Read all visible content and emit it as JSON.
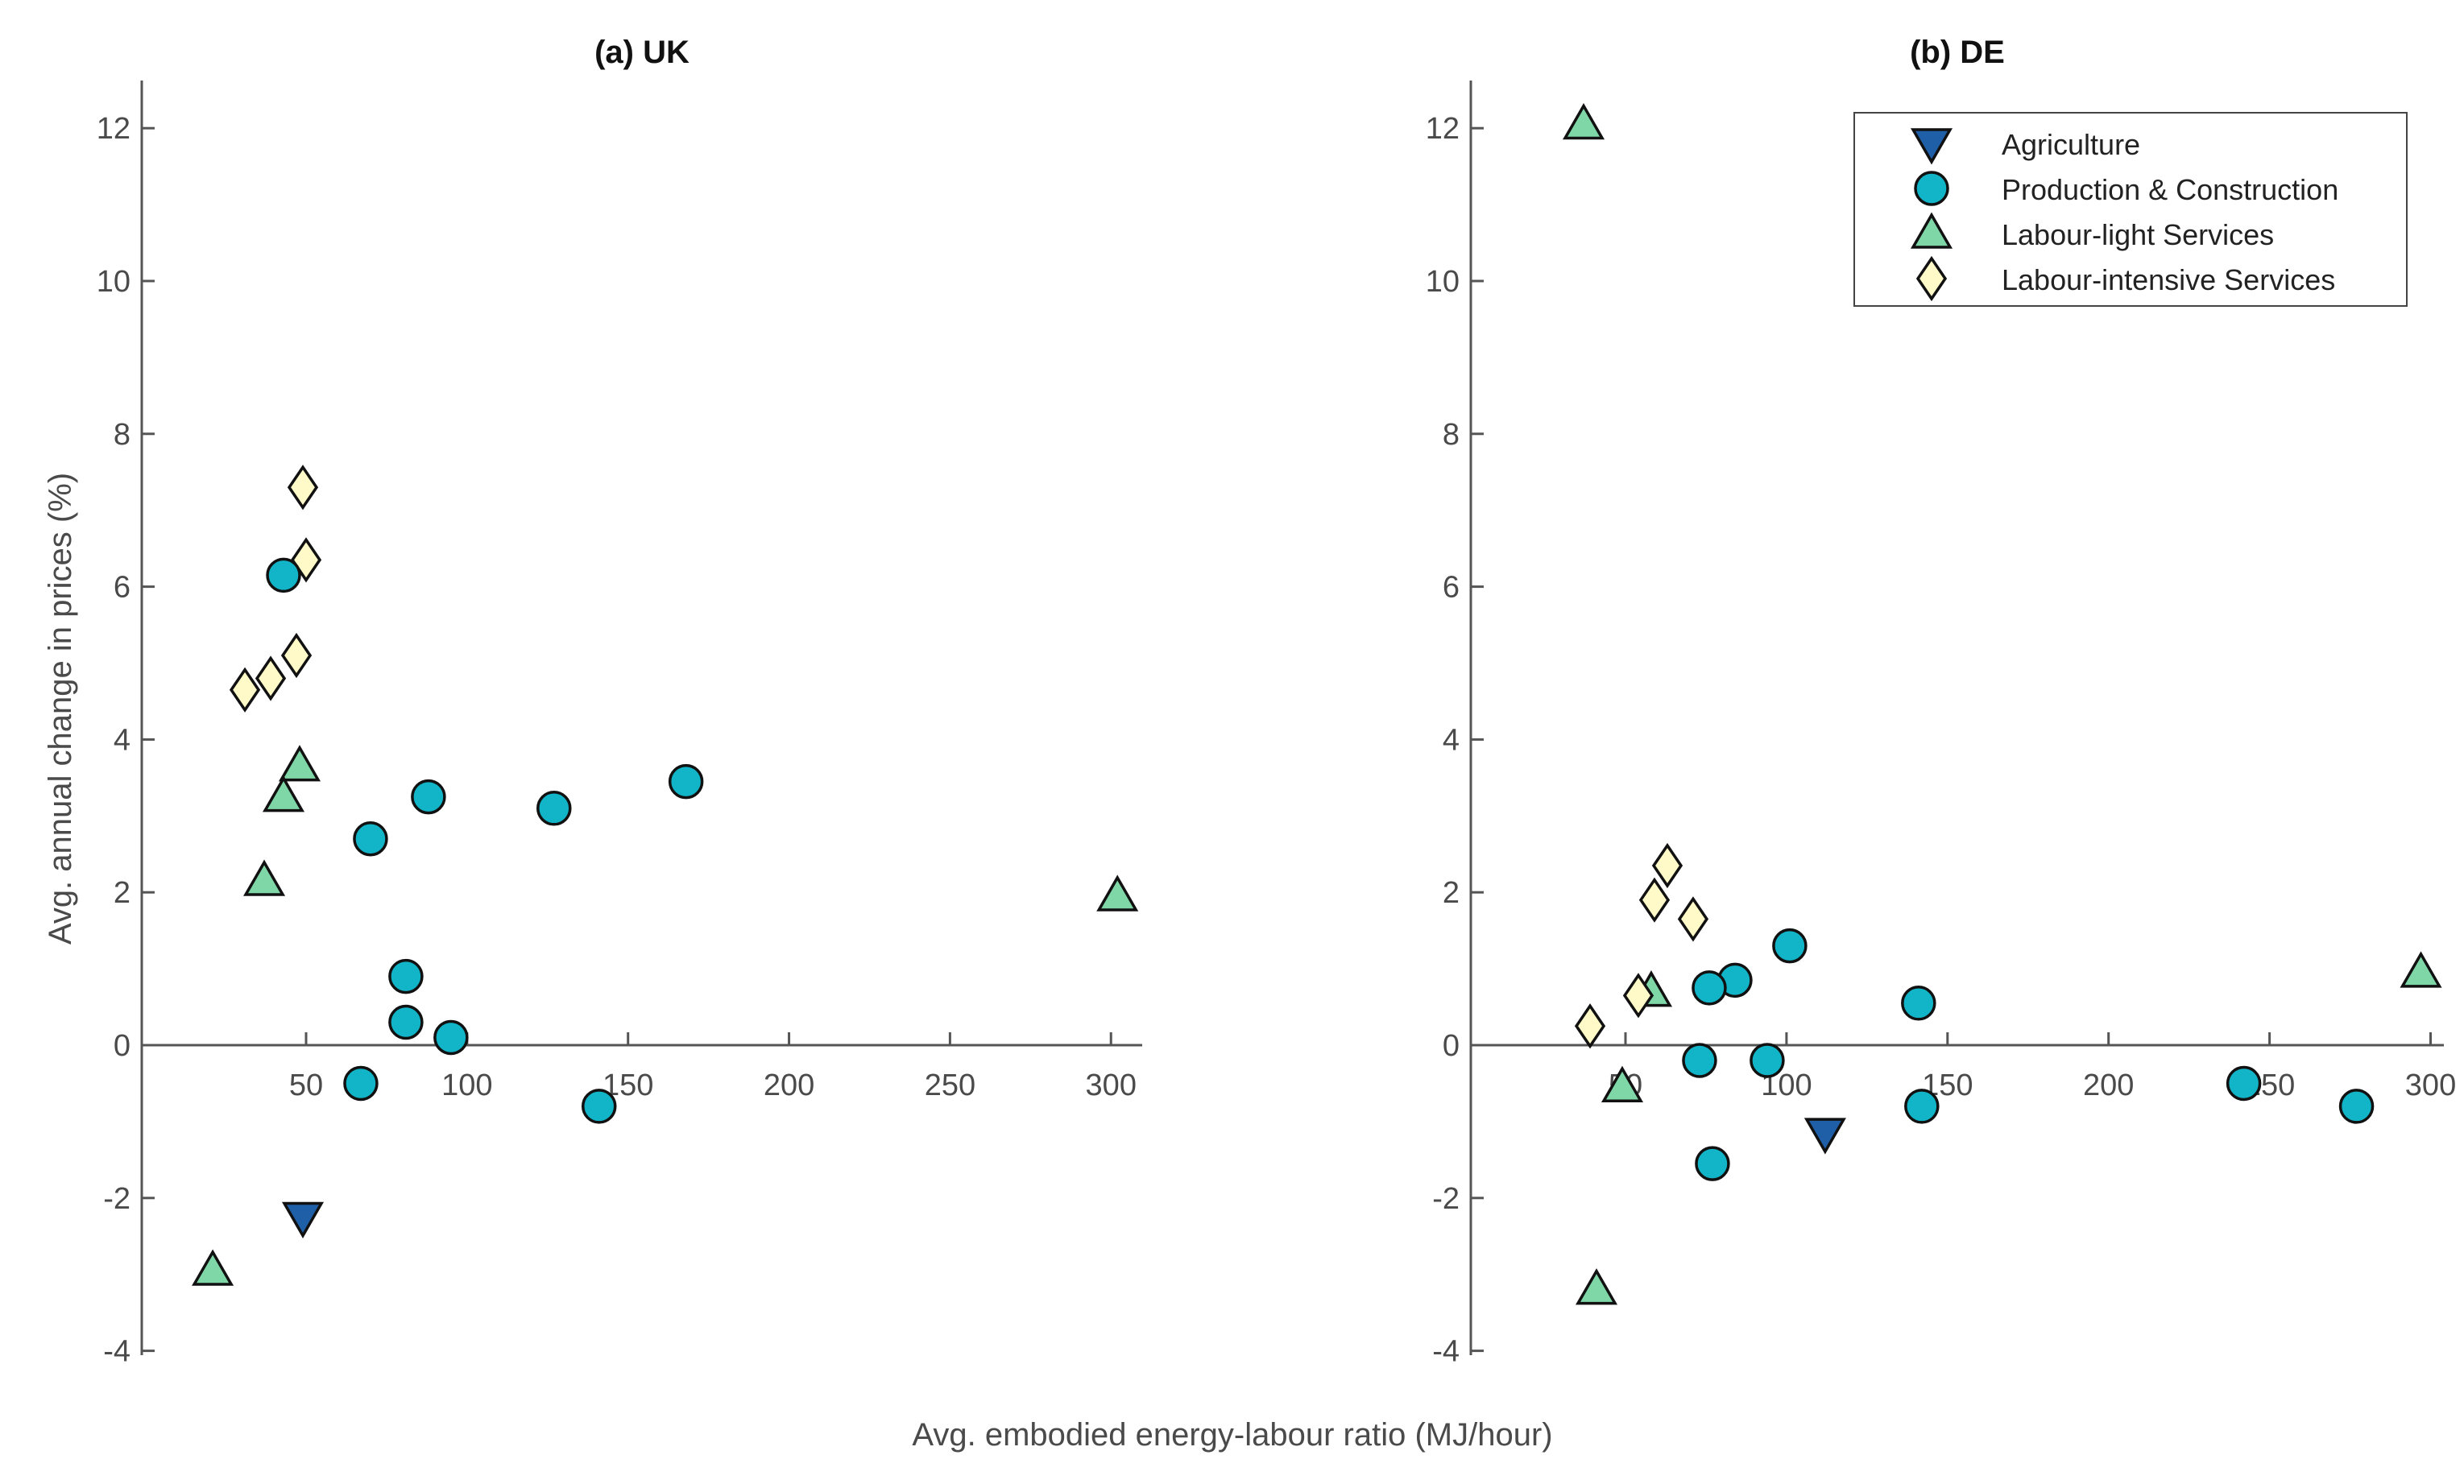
{
  "figure": {
    "xlabel": "Avg. embodied energy-labour ratio (MJ/hour)",
    "ylabel": "Avg. annual change in prices (%)"
  },
  "legend": {
    "placement": "top-right of panel (b)",
    "entries": [
      {
        "key": "agri",
        "label": "Agriculture"
      },
      {
        "key": "prod",
        "label": "Production & Construction"
      },
      {
        "key": "llight",
        "label": "Labour-light Services"
      },
      {
        "key": "lint",
        "label": "Labour-intensive Services"
      }
    ]
  },
  "styles": {
    "agri": {
      "marker": "triangle-down",
      "color": "#1f5fa8"
    },
    "prod": {
      "marker": "circle",
      "color": "#12b5c8"
    },
    "llight": {
      "marker": "triangle-up",
      "color": "#7fd7a8"
    },
    "lint": {
      "marker": "diamond",
      "color": "#fffac8"
    },
    "edge": "#111111",
    "axis": "#555555"
  },
  "chart_data": [
    {
      "type": "scatter",
      "title": "(a) UK",
      "xlim": [
        0,
        310
      ],
      "ylim": [
        -4,
        12.5
      ],
      "xticks": [
        50,
        100,
        150,
        200,
        250,
        300
      ],
      "xtick_labels": [
        "50",
        "100",
        "150",
        "200",
        "250",
        "300"
      ],
      "yticks": [
        -4,
        -2,
        0,
        2,
        4,
        6,
        8,
        10,
        12
      ],
      "ytick_labels": [
        "-4",
        "-2",
        "0",
        "2",
        "4",
        "6",
        "8",
        "10",
        "12"
      ],
      "series": [
        {
          "key": "lint",
          "name": "Labour-intensive Services",
          "points": [
            [
              49,
              7.3
            ],
            [
              50,
              6.35
            ],
            [
              47,
              5.1
            ],
            [
              39,
              4.8
            ],
            [
              31,
              4.65
            ]
          ]
        },
        {
          "key": "prod",
          "name": "Production & Construction",
          "points": [
            [
              43,
              6.15
            ],
            [
              88,
              3.25
            ],
            [
              168,
              3.45
            ],
            [
              127,
              3.1
            ],
            [
              70,
              2.7
            ],
            [
              81,
              0.9
            ],
            [
              81,
              0.3
            ],
            [
              95,
              0.1
            ],
            [
              67,
              -0.5
            ],
            [
              141,
              -0.8
            ]
          ]
        },
        {
          "key": "llight",
          "name": "Labour-light Services",
          "points": [
            [
              48,
              3.65
            ],
            [
              43,
              3.25
            ],
            [
              37,
              2.15
            ],
            [
              302,
              1.95
            ],
            [
              21,
              -2.95
            ]
          ]
        },
        {
          "key": "agri",
          "name": "Agriculture",
          "points": [
            [
              49,
              -2.25
            ]
          ]
        }
      ]
    },
    {
      "type": "scatter",
      "title": "(b) DE",
      "xlim": [
        0,
        310
      ],
      "ylim": [
        -4,
        12.5
      ],
      "xticks": [
        50,
        100,
        150,
        200,
        250,
        300
      ],
      "xtick_labels": [
        "50",
        "100",
        "150",
        "200",
        "250",
        "300"
      ],
      "yticks": [
        -4,
        -2,
        0,
        2,
        4,
        6,
        8,
        10,
        12
      ],
      "ytick_labels": [
        "-4",
        "-2",
        "0",
        "2",
        "4",
        "6",
        "8",
        "10",
        "12"
      ],
      "series": [
        {
          "key": "llight",
          "name": "Labour-light Services",
          "points": [
            [
              37,
              12.05
            ],
            [
              297,
              0.95
            ],
            [
              58,
              0.7
            ],
            [
              49,
              -0.55
            ],
            [
              41,
              -3.2
            ]
          ]
        },
        {
          "key": "lint",
          "name": "Labour-intensive Services",
          "points": [
            [
              63,
              2.35
            ],
            [
              59,
              1.9
            ],
            [
              71,
              1.65
            ],
            [
              54,
              0.65
            ],
            [
              39,
              0.25
            ]
          ]
        },
        {
          "key": "prod",
          "name": "Production & Construction",
          "points": [
            [
              101,
              1.3
            ],
            [
              84,
              0.85
            ],
            [
              76,
              0.75
            ],
            [
              141,
              0.55
            ],
            [
              73,
              -0.2
            ],
            [
              94,
              -0.2
            ],
            [
              142,
              -0.8
            ],
            [
              242,
              -0.5
            ],
            [
              277,
              -0.8
            ],
            [
              77,
              -1.55
            ]
          ]
        },
        {
          "key": "agri",
          "name": "Agriculture",
          "points": [
            [
              112,
              -1.15
            ]
          ]
        }
      ]
    }
  ]
}
